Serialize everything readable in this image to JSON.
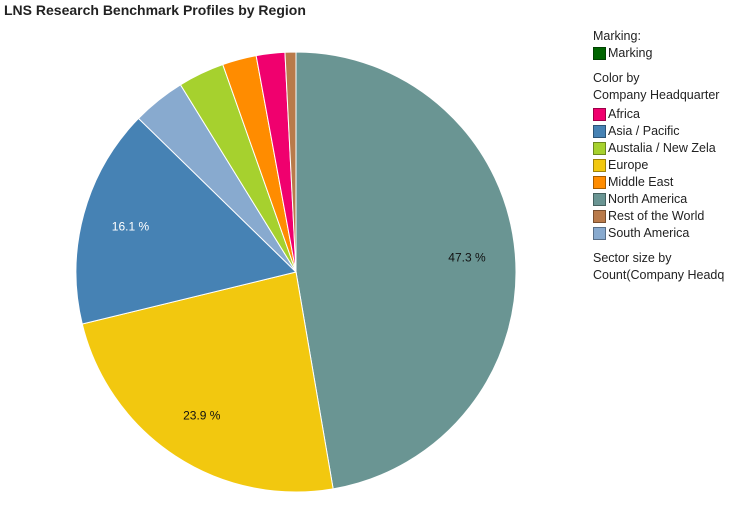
{
  "chart_data": {
    "type": "pie",
    "title": "LNS Research Benchmark Profiles by Region",
    "start_angle": "top, clockwise",
    "slices": [
      {
        "label": "North America",
        "value": 47.3,
        "color": "#6A9593",
        "data_label": "47.3 %"
      },
      {
        "label": "Europe",
        "value": 23.9,
        "color": "#F2C80F",
        "data_label": "23.9 %"
      },
      {
        "label": "Asia / Pacific",
        "value": 16.1,
        "color": "#4682B4",
        "data_label": "16.1 %"
      },
      {
        "label": "South America",
        "value": 3.9,
        "color": "#88AACF",
        "data_label": ""
      },
      {
        "label": "Austalia  /  New Zela",
        "value": 3.4,
        "color": "#A6D12E",
        "data_label": ""
      },
      {
        "label": "Middle East",
        "value": 2.5,
        "color": "#FF8C00",
        "data_label": ""
      },
      {
        "label": "Africa",
        "value": 2.1,
        "color": "#F0006E",
        "data_label": ""
      },
      {
        "label": "Rest of the World",
        "value": 0.8,
        "color": "#B97A4A",
        "data_label": ""
      }
    ],
    "legend": {
      "placement": "right",
      "marking_header": "Marking:",
      "marking_label": "Marking",
      "marking_color": "#006400",
      "color_header_1": "Color by",
      "color_header_2": "Company Headquarter",
      "items": [
        {
          "label": "Africa",
          "color": "#F0006E"
        },
        {
          "label": "Asia / Pacific",
          "color": "#4682B4"
        },
        {
          "label": "Austalia  /  New Zela",
          "color": "#A6D12E"
        },
        {
          "label": "Europe",
          "color": "#F2C80F"
        },
        {
          "label": "Middle East",
          "color": "#FF8C00"
        },
        {
          "label": "North America",
          "color": "#6A9593"
        },
        {
          "label": "Rest of the World",
          "color": "#B97A4A"
        },
        {
          "label": "South America",
          "color": "#88AACF"
        }
      ],
      "size_header_1": "Sector size by",
      "size_header_2": "Count(Company Headq"
    }
  }
}
